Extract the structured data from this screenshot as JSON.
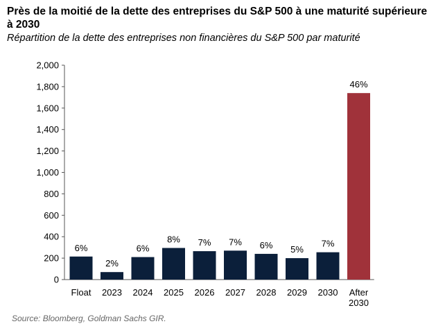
{
  "header": {
    "title": "Près de la moitié de la dette des entreprises du S&P 500 à une maturité supérieure à 2030",
    "subtitle": "Répartition de la dette des entreprises non financières du S&P 500 par maturité"
  },
  "footer": {
    "source": "Source: Bloomberg, Goldman Sachs GIR."
  },
  "chart_data": {
    "type": "bar",
    "title": "",
    "xlabel": "",
    "ylabel": "",
    "ylim": [
      0,
      2000
    ],
    "yticks": [
      0,
      200,
      400,
      600,
      800,
      1000,
      1200,
      1400,
      1600,
      1800,
      2000
    ],
    "ytick_labels": [
      "0",
      "200",
      "400",
      "600",
      "800",
      "1,000",
      "1,200",
      "1,400",
      "1,600",
      "1,800",
      "2,000"
    ],
    "categories": [
      "Float",
      "2023",
      "2024",
      "2025",
      "2026",
      "2027",
      "2028",
      "2029",
      "2030",
      "After 2030"
    ],
    "values": [
      215,
      70,
      210,
      295,
      265,
      270,
      240,
      200,
      255,
      1740
    ],
    "data_labels": [
      "6%",
      "2%",
      "6%",
      "8%",
      "7%",
      "7%",
      "6%",
      "5%",
      "7%",
      "46%"
    ],
    "colors": [
      "#0b1f3a",
      "#0b1f3a",
      "#0b1f3a",
      "#0b1f3a",
      "#0b1f3a",
      "#0b1f3a",
      "#0b1f3a",
      "#0b1f3a",
      "#0b1f3a",
      "#a0323a"
    ],
    "grid": false,
    "legend": "none"
  }
}
